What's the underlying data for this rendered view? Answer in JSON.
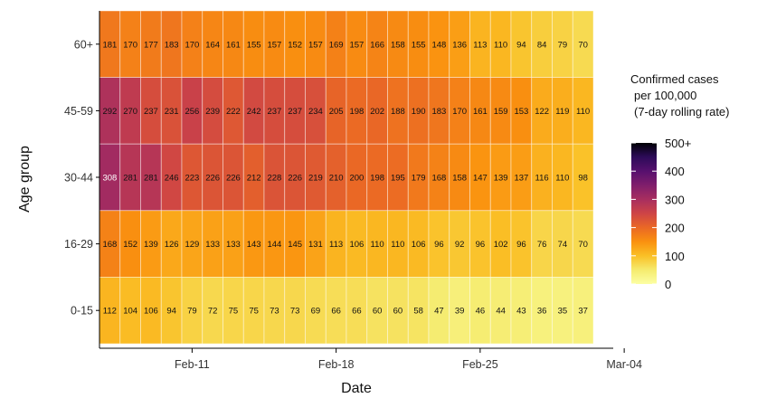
{
  "chart_data": {
    "type": "heatmap",
    "xlabel": "Date",
    "ylabel": "Age group",
    "x_ticks": [
      "Feb-11",
      "Feb-18",
      "Feb-25",
      "Mar-04"
    ],
    "rows": [
      "60+",
      "45-59",
      "30-44",
      "16-29",
      "0-15"
    ],
    "values": [
      [
        181,
        170,
        177,
        183,
        170,
        164,
        161,
        155,
        157,
        152,
        157,
        169,
        157,
        166,
        158,
        155,
        148,
        136,
        113,
        110,
        94,
        84,
        79,
        70
      ],
      [
        292,
        270,
        237,
        231,
        256,
        239,
        222,
        242,
        237,
        237,
        234,
        205,
        198,
        202,
        188,
        190,
        183,
        170,
        161,
        159,
        153,
        122,
        119,
        110
      ],
      [
        308,
        281,
        281,
        246,
        223,
        226,
        226,
        212,
        228,
        226,
        219,
        210,
        200,
        198,
        195,
        179,
        168,
        158,
        147,
        139,
        137,
        116,
        110,
        98
      ],
      [
        168,
        152,
        139,
        126,
        129,
        133,
        133,
        143,
        144,
        145,
        131,
        113,
        106,
        110,
        110,
        106,
        96,
        92,
        96,
        102,
        96,
        76,
        74,
        70
      ],
      [
        112,
        104,
        106,
        94,
        79,
        72,
        75,
        75,
        73,
        73,
        69,
        66,
        66,
        60,
        60,
        58,
        47,
        39,
        46,
        44,
        43,
        36,
        35,
        37
      ]
    ],
    "legend": {
      "title_lines": [
        "Confirmed cases",
        "per 100,000",
        "(7-day rolling rate)"
      ],
      "tick_labels": [
        "500+",
        "400",
        "300",
        "200",
        "100",
        "0"
      ],
      "tick_values": [
        500,
        400,
        300,
        200,
        100,
        0
      ],
      "max": 500,
      "colorscale": "inferno-reversed"
    },
    "grid": false
  }
}
